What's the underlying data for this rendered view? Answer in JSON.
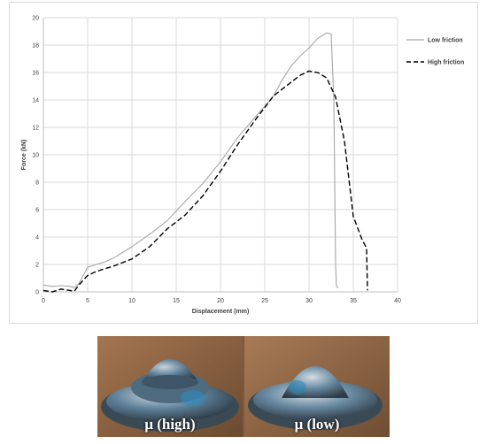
{
  "chart_data": {
    "type": "line",
    "xlabel": "Displacement (mm)",
    "ylabel": "Force (kN)",
    "xlim": [
      0,
      40
    ],
    "ylim": [
      0,
      20
    ],
    "x_ticks": [
      "0",
      "5",
      "10",
      "15",
      "20",
      "25",
      "30",
      "35",
      "40"
    ],
    "y_ticks": [
      "0",
      "2",
      "4",
      "6",
      "8",
      "10",
      "12",
      "14",
      "16",
      "18",
      "20"
    ],
    "grid": true,
    "legend_position": "top-right",
    "series": [
      {
        "name": "Low friction",
        "color": "#a6a6a6",
        "style": "solid",
        "x": [
          0,
          1,
          2,
          3,
          3.5,
          4,
          5,
          6,
          7,
          8,
          9,
          10,
          12,
          14,
          16,
          18,
          20,
          22,
          24,
          26,
          27,
          28,
          29,
          30,
          31,
          32,
          32.5,
          32.8,
          33.0,
          33.1,
          33.3
        ],
        "y": [
          0.5,
          0.4,
          0.45,
          0.4,
          0.3,
          0.6,
          1.8,
          2.0,
          2.2,
          2.5,
          2.9,
          3.3,
          4.2,
          5.2,
          6.6,
          7.9,
          9.5,
          11.3,
          12.8,
          14.3,
          15.5,
          16.5,
          17.2,
          17.8,
          18.5,
          18.9,
          18.8,
          14.0,
          2.0,
          0.4,
          0.3
        ]
      },
      {
        "name": "High friction",
        "color": "#000000",
        "style": "dashed",
        "x": [
          0,
          1,
          2,
          3,
          3.5,
          4,
          5,
          6,
          8,
          10,
          12,
          14,
          16,
          18,
          20,
          22,
          24,
          26,
          28,
          29,
          30,
          31,
          32,
          33,
          34,
          35,
          36,
          36.5,
          36.6
        ],
        "y": [
          0.1,
          0.0,
          0.2,
          0.1,
          0.05,
          0.5,
          1.2,
          1.5,
          1.9,
          2.4,
          3.3,
          4.6,
          5.6,
          7.0,
          8.8,
          10.8,
          12.6,
          14.3,
          15.3,
          15.8,
          16.1,
          16.0,
          15.6,
          14.2,
          11.0,
          5.5,
          3.8,
          3.2,
          0.1
        ]
      }
    ]
  },
  "photos": {
    "left_caption": "μ (high)",
    "right_caption": "μ (low)"
  }
}
